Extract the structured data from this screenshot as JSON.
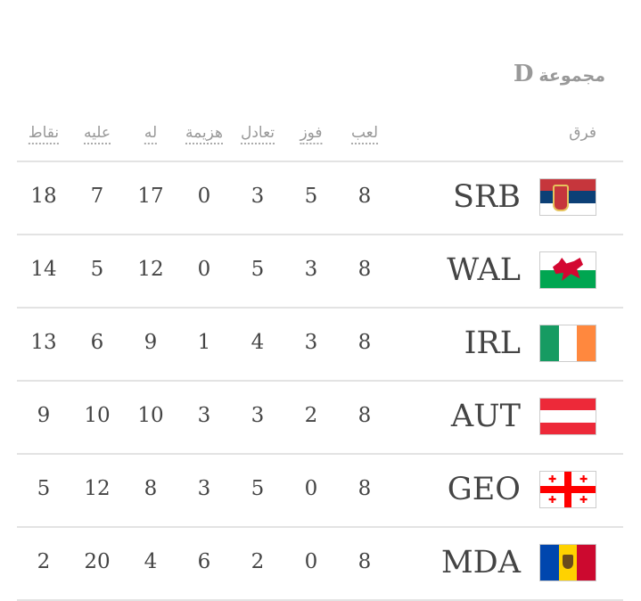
{
  "group": {
    "label": "مجموعة",
    "letter": "D"
  },
  "headers": {
    "team": "فرق",
    "played": "لعب",
    "won": "فوز",
    "drawn": "تعادل",
    "lost": "هزيمة",
    "for": "له",
    "against": "عليه",
    "points": "نقاط"
  },
  "rows": [
    {
      "code": "SRB",
      "flag": "serbia-flag",
      "played": "8",
      "won": "5",
      "drawn": "3",
      "lost": "0",
      "for": "17",
      "against": "7",
      "points": "18"
    },
    {
      "code": "WAL",
      "flag": "wales-flag",
      "played": "8",
      "won": "3",
      "drawn": "5",
      "lost": "0",
      "for": "12",
      "against": "5",
      "points": "14"
    },
    {
      "code": "IRL",
      "flag": "ireland-flag",
      "played": "8",
      "won": "3",
      "drawn": "4",
      "lost": "1",
      "for": "9",
      "against": "6",
      "points": "13"
    },
    {
      "code": "AUT",
      "flag": "austria-flag",
      "played": "8",
      "won": "2",
      "drawn": "3",
      "lost": "3",
      "for": "10",
      "against": "10",
      "points": "9"
    },
    {
      "code": "GEO",
      "flag": "georgia-flag",
      "played": "8",
      "won": "0",
      "drawn": "5",
      "lost": "3",
      "for": "8",
      "against": "12",
      "points": "5"
    },
    {
      "code": "MDA",
      "flag": "moldova-flag",
      "played": "8",
      "won": "0",
      "drawn": "2",
      "lost": "6",
      "for": "4",
      "against": "20",
      "points": "2"
    }
  ]
}
